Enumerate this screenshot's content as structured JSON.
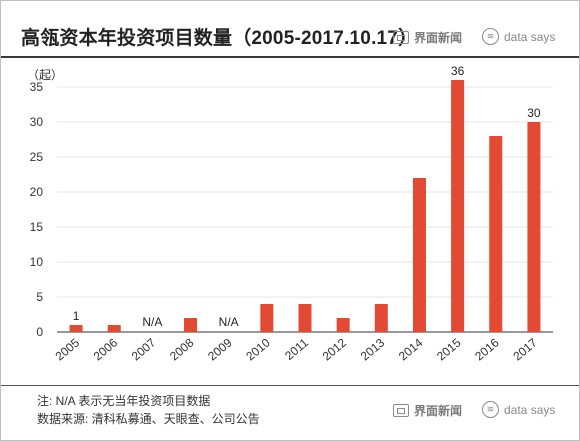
{
  "header": {
    "title": "高瓴资本年投资项目数量（2005-2017.10.17）"
  },
  "logos": {
    "jiemian": "界面新闻",
    "datasays": "data says"
  },
  "footer": {
    "note": "注: N/A 表示无当年投资项目数据",
    "source": "数据来源: 清科私募通、天眼查、公司公告"
  },
  "colors": {
    "bar": "#e24a33",
    "axis": "#333333",
    "grid": "#e6e6e6"
  },
  "chart_data": {
    "type": "bar",
    "ylabel": "（起）",
    "ylim": [
      0,
      37
    ],
    "yticks": [
      0,
      5,
      10,
      15,
      20,
      25,
      30,
      35
    ],
    "categories": [
      "2005",
      "2006",
      "2007",
      "2008",
      "2009",
      "2010",
      "2011",
      "2012",
      "2013",
      "2014",
      "2015",
      "2016",
      "2017"
    ],
    "values": [
      1,
      1,
      null,
      2,
      null,
      4,
      4,
      2,
      4,
      22,
      36,
      28,
      30
    ],
    "data_labels": [
      "1",
      "",
      "N/A",
      "",
      "N/A",
      "",
      "",
      "",
      "",
      "",
      "36",
      "",
      "30"
    ],
    "grid": true
  }
}
